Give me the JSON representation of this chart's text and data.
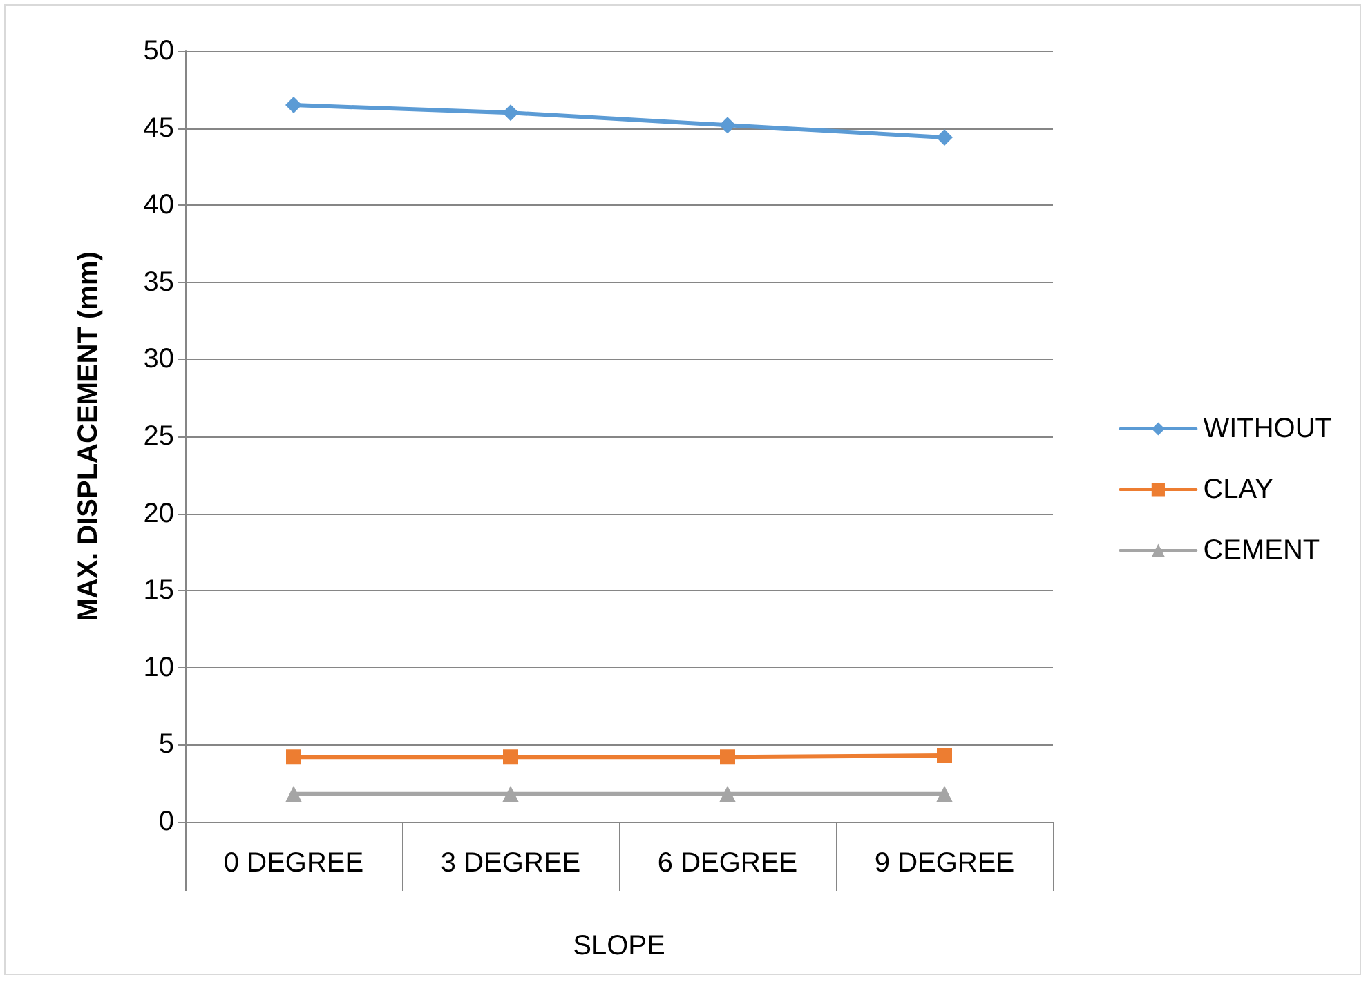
{
  "chart_data": {
    "type": "line",
    "ylabel": "MAX. DISPLACEMENT (mm)",
    "xlabel": "SLOPE",
    "categories": [
      "0 DEGREE",
      "3 DEGREE",
      "6 DEGREE",
      "9 DEGREE"
    ],
    "series": [
      {
        "name": "WITHOUT",
        "color": "#5b9bd5",
        "marker": "diamond",
        "values": [
          46.5,
          46.0,
          45.2,
          44.4
        ]
      },
      {
        "name": "CLAY",
        "color": "#ed7d31",
        "marker": "square",
        "values": [
          4.2,
          4.2,
          4.2,
          4.3
        ]
      },
      {
        "name": "CEMENT",
        "color": "#a5a5a5",
        "marker": "triangle",
        "values": [
          1.8,
          1.8,
          1.8,
          1.8
        ]
      }
    ],
    "ylim": [
      0,
      50
    ],
    "yticks": [
      0,
      5,
      10,
      15,
      20,
      25,
      30,
      35,
      40,
      45,
      50
    ],
    "grid": "y",
    "legend": "right"
  }
}
